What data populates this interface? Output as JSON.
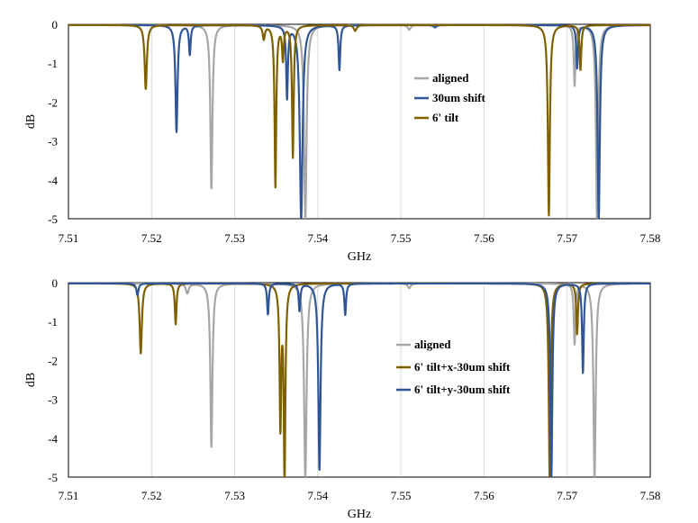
{
  "chart_data": [
    {
      "type": "line",
      "title": "",
      "xlabel": "GHz",
      "ylabel": "dB",
      "xlim": [
        7.51,
        7.58
      ],
      "ylim": [
        -5,
        0
      ],
      "xticks": [
        "7.51",
        "7.52",
        "7.53",
        "7.54",
        "7.55",
        "7.56",
        "7.57",
        "7.58"
      ],
      "yticks": [
        "0",
        "-1",
        "-2",
        "-3",
        "-4",
        "-5"
      ],
      "grid": "vertical",
      "legend_position": "center-right",
      "series": [
        {
          "name": "aligned",
          "color": "#a6a6a6",
          "baseline": -0.02,
          "dips": [
            {
              "f": 7.5272,
              "depth": 4.2,
              "w": 0.00015
            },
            {
              "f": 7.5385,
              "depth": 5.0,
              "w": 0.00018
            },
            {
              "f": 7.551,
              "depth": 0.12,
              "w": 0.0002
            },
            {
              "f": 7.5709,
              "depth": 1.55,
              "w": 0.00012
            },
            {
              "f": 7.5736,
              "depth": 5.0,
              "w": 0.00016
            }
          ]
        },
        {
          "name": "30um shift",
          "color": "#2f5597",
          "baseline": -0.02,
          "dips": [
            {
              "f": 7.523,
              "depth": 2.75,
              "w": 0.00015
            },
            {
              "f": 7.5246,
              "depth": 0.75,
              "w": 0.00012
            },
            {
              "f": 7.5363,
              "depth": 1.85,
              "w": 0.00012
            },
            {
              "f": 7.538,
              "depth": 5.0,
              "w": 0.0002
            },
            {
              "f": 7.5426,
              "depth": 1.15,
              "w": 0.00012
            },
            {
              "f": 7.5541,
              "depth": 0.06,
              "w": 0.0002
            },
            {
              "f": 7.5712,
              "depth": 1.1,
              "w": 0.00012
            },
            {
              "f": 7.5738,
              "depth": 5.0,
              "w": 0.00016
            }
          ]
        },
        {
          "name": "6' tilt",
          "color": "#7f6000",
          "baseline": -0.02,
          "dips": [
            {
              "f": 7.5193,
              "depth": 1.65,
              "w": 0.00016
            },
            {
              "f": 7.5335,
              "depth": 0.35,
              "w": 0.00015
            },
            {
              "f": 7.5349,
              "depth": 4.15,
              "w": 0.00012
            },
            {
              "f": 7.5358,
              "depth": 0.85,
              "w": 0.00012
            },
            {
              "f": 7.537,
              "depth": 3.4,
              "w": 0.00012
            },
            {
              "f": 7.5445,
              "depth": 0.15,
              "w": 0.0002
            },
            {
              "f": 7.5678,
              "depth": 4.9,
              "w": 0.00014
            },
            {
              "f": 7.5716,
              "depth": 1.15,
              "w": 0.00012
            }
          ]
        }
      ]
    },
    {
      "type": "line",
      "title": "",
      "xlabel": "GHz",
      "ylabel": "dB",
      "xlim": [
        7.51,
        7.58
      ],
      "ylim": [
        -5,
        0
      ],
      "xticks": [
        "7.51",
        "7.52",
        "7.53",
        "7.54",
        "7.55",
        "7.56",
        "7.57",
        "7.58"
      ],
      "yticks": [
        "0",
        "-1",
        "-2",
        "-3",
        "-4",
        "-5"
      ],
      "grid": "vertical",
      "legend_position": "center-right",
      "series": [
        {
          "name": "aligned",
          "color": "#a6a6a6",
          "baseline": -0.02,
          "dips": [
            {
              "f": 7.5243,
              "depth": 0.25,
              "w": 0.0002
            },
            {
              "f": 7.5272,
              "depth": 4.2,
              "w": 0.00015
            },
            {
              "f": 7.5385,
              "depth": 5.0,
              "w": 0.00018
            },
            {
              "f": 7.551,
              "depth": 0.12,
              "w": 0.0002
            },
            {
              "f": 7.5709,
              "depth": 1.55,
              "w": 0.00012
            },
            {
              "f": 7.5733,
              "depth": 5.0,
              "w": 0.00016
            }
          ]
        },
        {
          "name": "6' tilt+x-30um shift",
          "color": "#7f6000",
          "baseline": -0.02,
          "dips": [
            {
              "f": 7.5187,
              "depth": 1.8,
              "w": 0.00016
            },
            {
              "f": 7.5229,
              "depth": 1.05,
              "w": 0.00012
            },
            {
              "f": 7.5355,
              "depth": 3.6,
              "w": 0.00012
            },
            {
              "f": 7.536,
              "depth": 5.0,
              "w": 0.00012
            },
            {
              "f": 7.5679,
              "depth": 5.0,
              "w": 0.00014
            },
            {
              "f": 7.5712,
              "depth": 1.3,
              "w": 0.00012
            }
          ]
        },
        {
          "name": "6' tilt+y-30um shift",
          "color": "#2f5597",
          "baseline": -0.02,
          "dips": [
            {
              "f": 7.5183,
              "depth": 0.3,
              "w": 0.00015
            },
            {
              "f": 7.534,
              "depth": 0.8,
              "w": 0.00012
            },
            {
              "f": 7.5378,
              "depth": 0.7,
              "w": 0.00012
            },
            {
              "f": 7.5402,
              "depth": 4.8,
              "w": 0.00016
            },
            {
              "f": 7.5433,
              "depth": 0.8,
              "w": 0.00012
            },
            {
              "f": 7.5681,
              "depth": 5.0,
              "w": 0.00014
            },
            {
              "f": 7.5719,
              "depth": 2.3,
              "w": 0.00012
            }
          ]
        }
      ]
    }
  ]
}
